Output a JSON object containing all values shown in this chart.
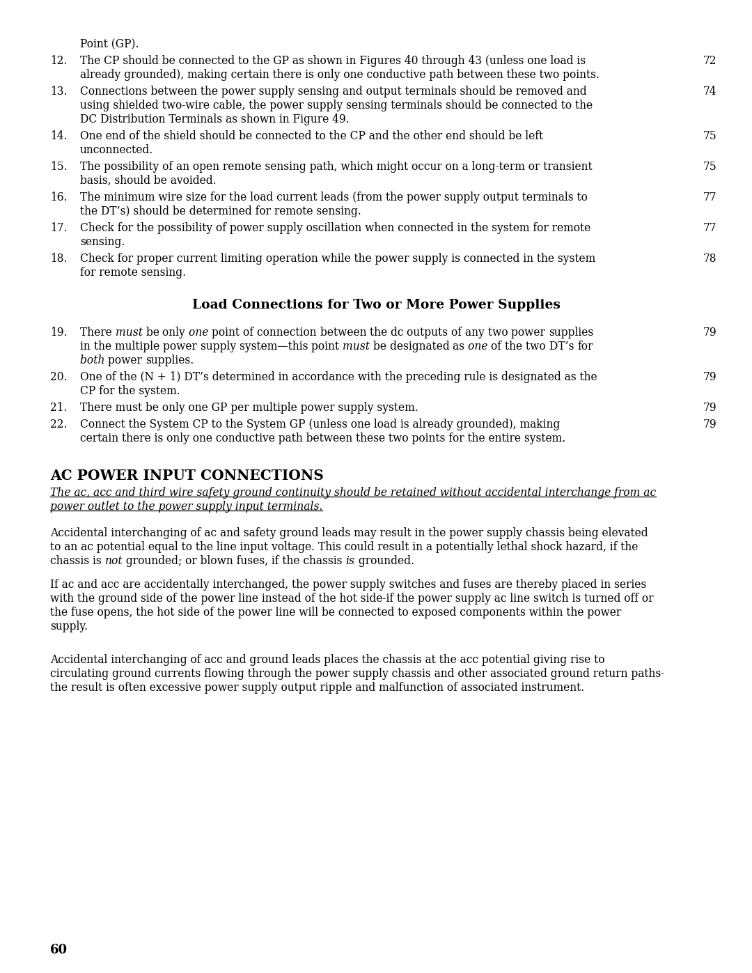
{
  "bg_color": "#ffffff",
  "text_color": "#000000",
  "page_number": "60",
  "top_indent_text": "Point (GP).",
  "list_items": [
    {
      "num": "12.",
      "text": "The CP should be connected to the GP as shown in Figures 40 through 43 (unless one load is\nalready grounded), making certain there is only one conductive path between these two points.",
      "page": "72"
    },
    {
      "num": "13.",
      "text": "Connections between the power supply sensing and output terminals should be removed and\nusing shielded two-wire cable, the power supply sensing terminals should be connected to the\nDC Distribution Terminals as shown in Figure 49.",
      "page": "74"
    },
    {
      "num": "14.",
      "text": "One end of the shield should be connected to the CP and the other end should be left\nunconnected.",
      "page": "75"
    },
    {
      "num": "15.",
      "text": "The possibility of an open remote sensing path, which might occur on a long-term or transient\nbasis, should be avoided.",
      "page": "75"
    },
    {
      "num": "16.",
      "text": "The minimum wire size for the load current leads (from the power supply output terminals to\nthe DT’s) should be determined for remote sensing.",
      "page": "77"
    },
    {
      "num": "17.",
      "text": "Check for the possibility of power supply oscillation when connected in the system for remote\nsensing.",
      "page": "77"
    },
    {
      "num": "18.",
      "text": "Check for proper current limiting operation while the power supply is connected in the system\nfor remote sensing.",
      "page": "78"
    }
  ],
  "section_heading": "Load Connections for Two or More Power Supplies",
  "list_items2": [
    {
      "num": "19.",
      "lines": [
        "There must be only one point of connection between the dc outputs of any two power supplies",
        "in the multiple power supply system—this point must be designated as one of the two DT’s for",
        "both power supplies."
      ],
      "italic_words": [
        "must",
        "one",
        "both"
      ],
      "page": "79"
    },
    {
      "num": "20.",
      "lines": [
        "One of the (N + 1) DT’s determined in accordance with the preceding rule is designated as the",
        "CP for the system."
      ],
      "italic_words": [],
      "page": "79"
    },
    {
      "num": "21.",
      "lines": [
        "There must be only one GP per multiple power supply system."
      ],
      "italic_words": [],
      "page": "79"
    },
    {
      "num": "22.",
      "lines": [
        "Connect the System CP to the System GP (unless one load is already grounded), making",
        "certain there is only one conductive path between these two points for the entire system."
      ],
      "italic_words": [],
      "page": "79"
    }
  ],
  "ac_heading": "AC POWER INPUT CONNECTIONS",
  "ac_italic_lines": [
    "The ac, acc and third wire safety ground continuity should be retained without accidental interchange from ac",
    "power outlet to the power supply input terminals."
  ],
  "para1_lines": [
    {
      "parts": [
        {
          "t": "Accidental interchanging of ac and safety ground leads may result in the power supply chassis being elevated",
          "s": "normal"
        }
      ]
    },
    {
      "parts": [
        {
          "t": "to an ac potential equal to the line input voltage. This could result in a potentially lethal shock hazard, if the",
          "s": "normal"
        }
      ]
    },
    {
      "parts": [
        {
          "t": "chassis is ",
          "s": "normal"
        },
        {
          "t": "not",
          "s": "italic"
        },
        {
          "t": " grounded; or blown fuses, if the chassis ",
          "s": "normal"
        },
        {
          "t": "is",
          "s": "italic"
        },
        {
          "t": " grounded.",
          "s": "normal"
        }
      ]
    }
  ],
  "para2_lines": [
    "If ac and acc are accidentally interchanged, the power supply switches and fuses are thereby placed in series",
    "with the ground side of the power line instead of the hot side-if the power supply ac line switch is turned off or",
    "the fuse opens, the hot side of the power line will be connected to exposed components within the power",
    "supply."
  ],
  "para3_lines": [
    "Accidental interchanging of acc and ground leads places the chassis at the acc potential giving rise to",
    "circulating ground currents flowing through the power supply chassis and other associated ground return paths-",
    "the result is often excessive power supply output ripple and malfunction of associated instrument."
  ]
}
